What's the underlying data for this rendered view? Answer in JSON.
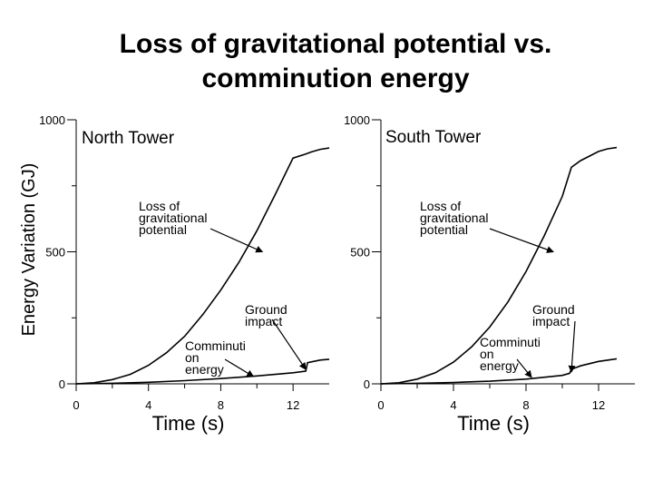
{
  "title": {
    "line1": "Loss of gravitational potential vs.",
    "line2": "comminution energy"
  },
  "shared_ylabel": "Energy Variation (GJ)",
  "chart_data": [
    {
      "type": "line",
      "title": "North Tower",
      "xlabel": "Time (s)",
      "ylabel": "Energy Variation (GJ)",
      "xlim": [
        0,
        14
      ],
      "ylim": [
        0,
        1000
      ],
      "xticks": [
        0,
        4,
        8,
        12
      ],
      "yticks": [
        0,
        500,
        1000
      ],
      "series": [
        {
          "name": "Loss of gravitational potential",
          "x": [
            0,
            1,
            2,
            3,
            4,
            5,
            6,
            7,
            8,
            9,
            10,
            11,
            12,
            12.7,
            13,
            13.5,
            14
          ],
          "y": [
            0,
            4,
            16,
            36,
            70,
            118,
            180,
            262,
            355,
            460,
            580,
            715,
            855,
            870,
            878,
            888,
            893
          ]
        },
        {
          "name": "Comminution energy",
          "x": [
            0,
            2,
            4,
            6,
            8,
            10,
            12,
            12.7,
            12.8,
            13.5,
            14
          ],
          "y": [
            0,
            2,
            6,
            12,
            20,
            30,
            42,
            48,
            80,
            90,
            93
          ]
        }
      ],
      "annotations": [
        {
          "text": "Loss of gravitational potential",
          "lines": [
            "Loss of",
            "gravitational",
            "potential"
          ],
          "target": [
            10.3,
            500
          ]
        },
        {
          "text": "Ground impact",
          "lines": [
            "Ground",
            "impact"
          ],
          "target": [
            12.7,
            55
          ]
        },
        {
          "text": "Comminution energy",
          "lines": [
            "Comminuti",
            "on",
            "energy"
          ],
          "target": [
            9.8,
            28
          ]
        }
      ]
    },
    {
      "type": "line",
      "title": "South Tower",
      "xlabel": "Time (s)",
      "ylabel": "Energy Variation (GJ)",
      "xlim": [
        0,
        14
      ],
      "ylim": [
        0,
        1000
      ],
      "xticks": [
        0,
        4,
        8,
        12
      ],
      "yticks": [
        0,
        500,
        1000
      ],
      "series": [
        {
          "name": "Loss of gravitational potential",
          "x": [
            0,
            1,
            2,
            3,
            4,
            5,
            6,
            7,
            8,
            9,
            10,
            10.5,
            11,
            12,
            12.5,
            13
          ],
          "y": [
            0,
            4,
            18,
            42,
            82,
            140,
            215,
            310,
            425,
            560,
            710,
            820,
            845,
            880,
            890,
            895
          ]
        },
        {
          "name": "Comminution energy",
          "x": [
            0,
            2,
            4,
            6,
            8,
            10,
            10.4,
            10.5,
            11,
            12,
            13
          ],
          "y": [
            0,
            2,
            5,
            10,
            18,
            32,
            40,
            55,
            68,
            85,
            95
          ]
        }
      ],
      "annotations": [
        {
          "text": "Loss of gravitational potential",
          "lines": [
            "Loss of",
            "gravitational",
            "potential"
          ],
          "target": [
            9.5,
            500
          ]
        },
        {
          "text": "Ground impact",
          "lines": [
            "Ground",
            "impact"
          ],
          "target": [
            10.5,
            45
          ]
        },
        {
          "text": "Comminution energy",
          "lines": [
            "Comminuti",
            "on",
            "energy"
          ],
          "target": [
            8.3,
            25
          ]
        }
      ]
    }
  ]
}
